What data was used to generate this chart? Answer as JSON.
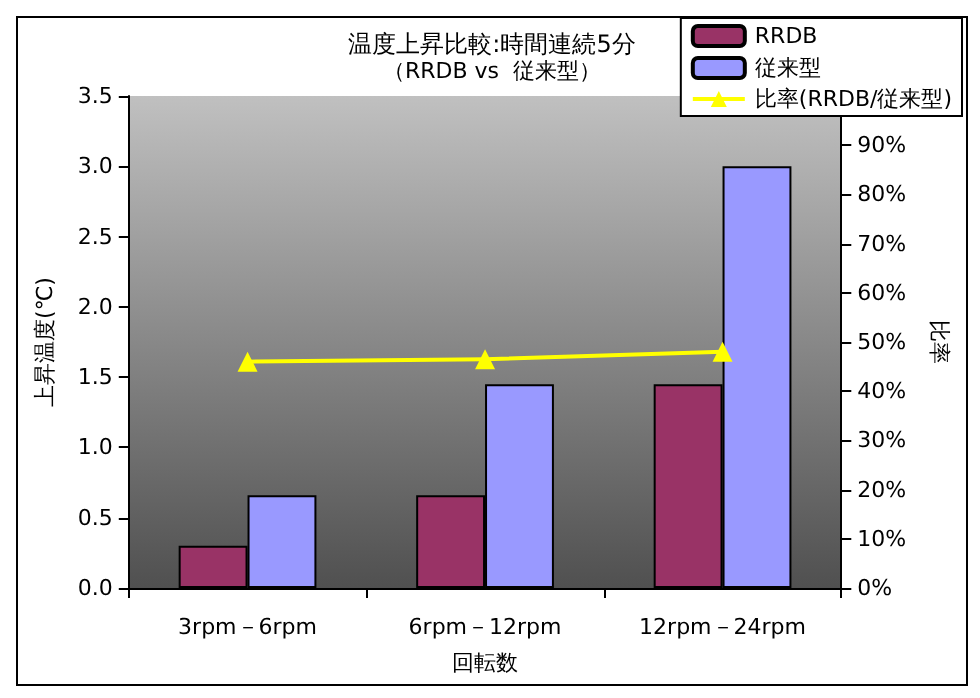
{
  "chart_data": {
    "type": "bar",
    "title": "温度上昇比較:時間連続5分",
    "subtitle": "（RRDB vs  従来型）",
    "xlabel": "回転数",
    "ylabel": "上昇温度(℃)",
    "y2label": "比率",
    "categories": [
      "3rpm－6rpm",
      "6rpm－12rpm",
      "12rpm－24rpm"
    ],
    "series": [
      {
        "name": "RRDB",
        "color": "#993366",
        "values": [
          0.3,
          0.66,
          1.45
        ]
      },
      {
        "name": "従来型",
        "color": "#9999ff",
        "values": [
          0.66,
          1.45,
          3.0
        ]
      },
      {
        "name": "比率(RRDB/従来型)",
        "type": "line",
        "axis": "y2",
        "color": "#ffff00",
        "values": [
          46,
          46.5,
          48
        ]
      }
    ],
    "ylim": [
      0,
      3.5
    ],
    "yticks": [
      {
        "value": 0,
        "label": "0.0"
      },
      {
        "value": 0.5,
        "label": "0.5"
      },
      {
        "value": 1,
        "label": "1.0"
      },
      {
        "value": 1.5,
        "label": "1.5"
      },
      {
        "value": 2,
        "label": "2.0"
      },
      {
        "value": 2.5,
        "label": "2.5"
      },
      {
        "value": 3,
        "label": "3.0"
      },
      {
        "value": 3.5,
        "label": "3.5"
      }
    ],
    "y2lim": [
      0,
      100
    ],
    "y2ticks": [
      {
        "value": 0,
        "label": "0%"
      },
      {
        "value": 10,
        "label": "10%"
      },
      {
        "value": 20,
        "label": "20%"
      },
      {
        "value": 30,
        "label": "30%"
      },
      {
        "value": 40,
        "label": "40%"
      },
      {
        "value": 50,
        "label": "50%"
      },
      {
        "value": 60,
        "label": "60%"
      },
      {
        "value": 70,
        "label": "70%"
      },
      {
        "value": 80,
        "label": "80%"
      },
      {
        "value": 90,
        "label": "90%"
      }
    ],
    "grid": false,
    "legend": "top right",
    "marker": "triangle"
  }
}
